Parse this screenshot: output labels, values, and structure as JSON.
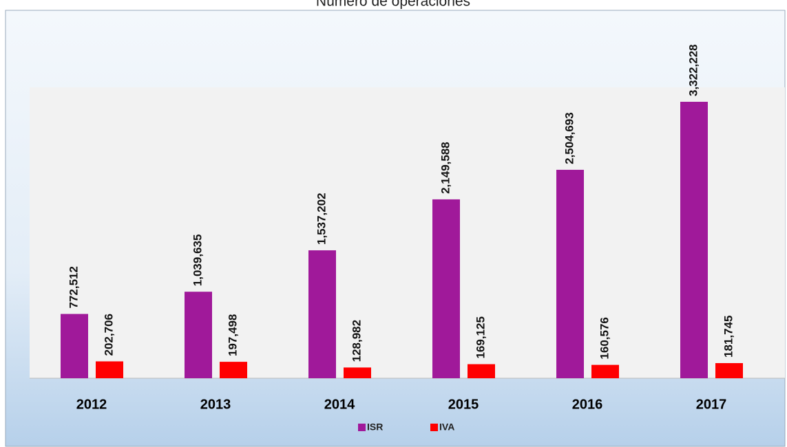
{
  "chart_data": {
    "type": "bar",
    "title": "Número de operaciones",
    "categories": [
      "2012",
      "2013",
      "2014",
      "2015",
      "2016",
      "2017"
    ],
    "series": [
      {
        "name": "ISR",
        "color": "#a0199a",
        "values": [
          772512,
          1039635,
          1537202,
          2149588,
          2504693,
          3322228
        ],
        "value_labels": [
          "772,512",
          "1,039,635",
          "1,537,202",
          "2,149,588",
          "2,504,693",
          "3,322,228"
        ]
      },
      {
        "name": "IVA",
        "color": "#ff0000",
        "values": [
          202706,
          197498,
          128982,
          169125,
          160576,
          181745
        ],
        "value_labels": [
          "202,706",
          "197,498",
          "128,982",
          "169,125",
          "160,576",
          "181,745"
        ]
      }
    ],
    "legend": "bottom"
  }
}
